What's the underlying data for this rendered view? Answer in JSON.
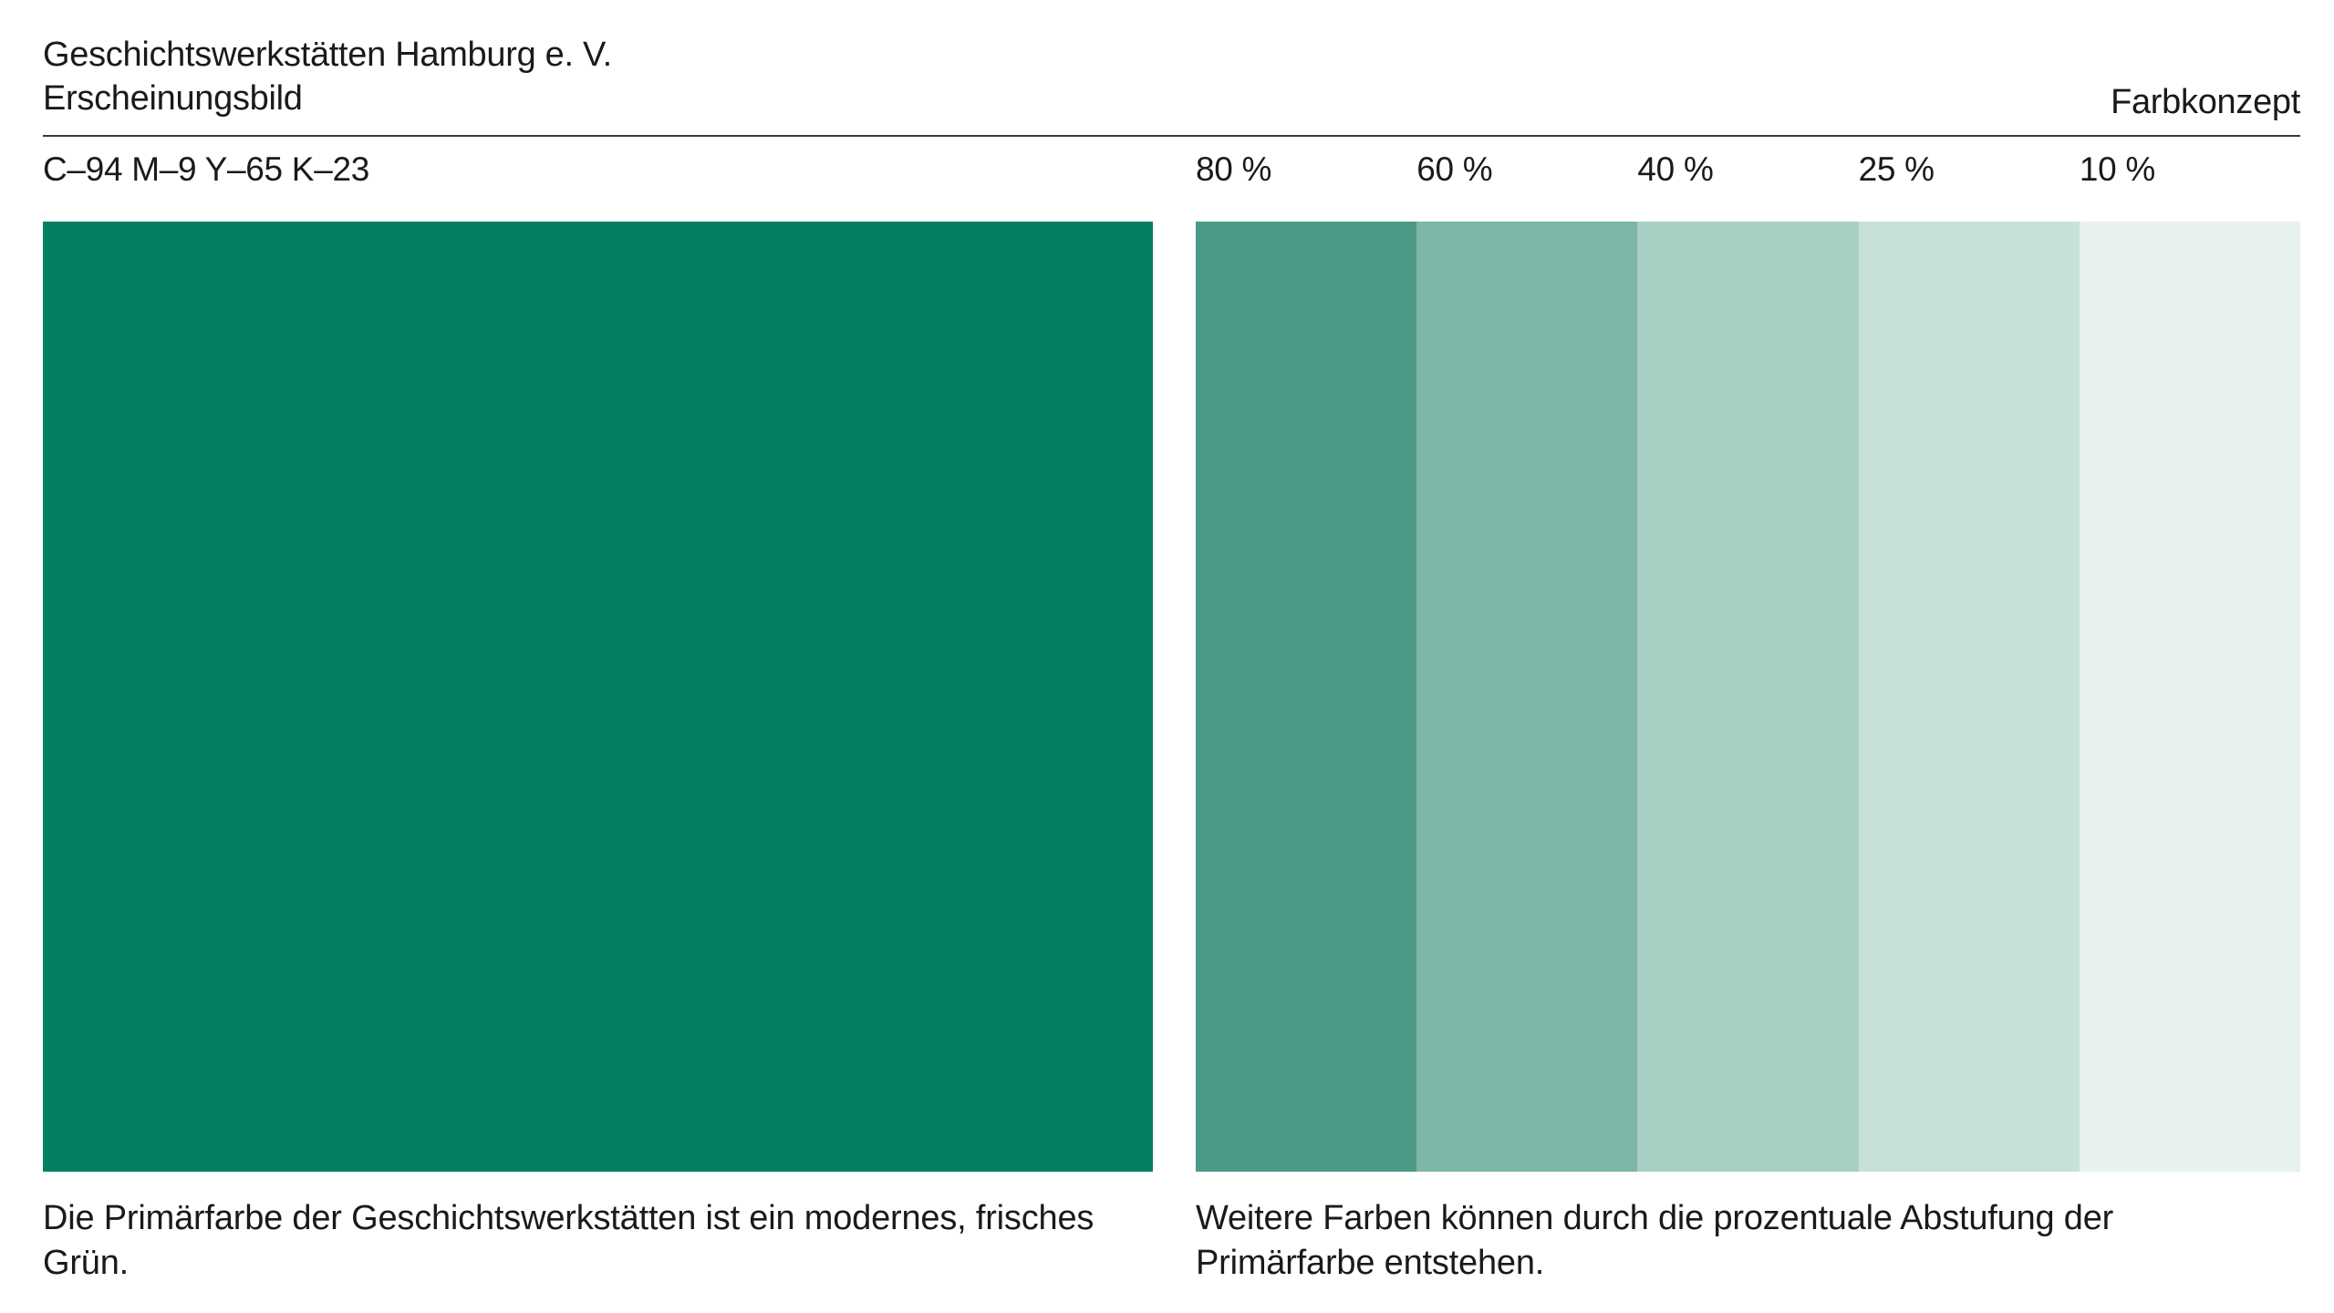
{
  "header": {
    "organization": "Geschichtswerkstätten Hamburg e. V.",
    "document": "Erscheinungsbild",
    "section": "Farbkonzept"
  },
  "primary": {
    "cmyk": "C–94 M–9 Y–65 K–23",
    "color": "#037f62",
    "caption": "Die Primärfarbe der Geschichtswerkstätten ist ein modernes, frisches Grün."
  },
  "tints": {
    "items": [
      {
        "label": "80 %",
        "color": "#4a9a87"
      },
      {
        "label": "60 %",
        "color": "#7db5a7"
      },
      {
        "label": "40 %",
        "color": "#a8cfc4"
      },
      {
        "label": "25 %",
        "color": "#c8e0da"
      },
      {
        "label": "10 %",
        "color": "#e7f1ee"
      }
    ],
    "caption": "Weitere Farben können durch die prozentuale Abstufung der Primärfarbe entstehen."
  }
}
